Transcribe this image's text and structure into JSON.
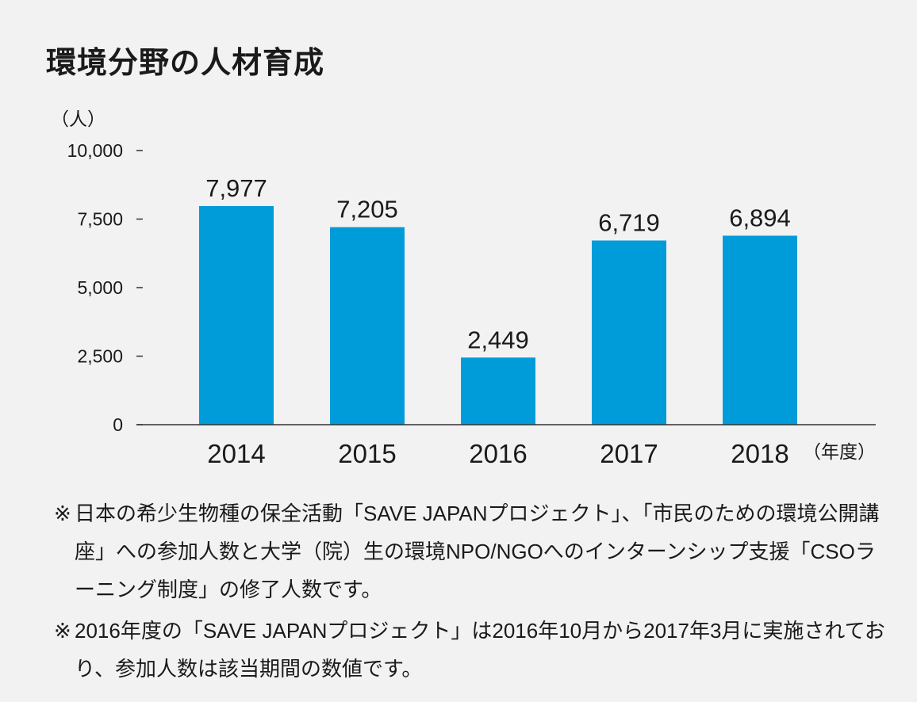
{
  "title": "環境分野の人材育成",
  "chart_data": {
    "type": "bar",
    "title": "",
    "ylabel": "（人）",
    "xlabel": "（年度）",
    "categories": [
      "2014",
      "2015",
      "2016",
      "2017",
      "2018"
    ],
    "values": [
      7977,
      7205,
      2449,
      6719,
      6894
    ],
    "value_labels": [
      "7,977",
      "7,205",
      "2,449",
      "6,719",
      "6,894"
    ],
    "ylim": [
      0,
      10000
    ],
    "yticks": [
      0,
      2500,
      5000,
      7500,
      10000
    ],
    "ytick_labels": [
      "0",
      "2,500",
      "5,000",
      "7,500",
      "10,000"
    ],
    "bar_color": "#009cd9",
    "grid": false
  },
  "notes": [
    {
      "mark": "※",
      "text": "日本の希少生物種の保全活動「SAVE JAPANプロジェクト」、「市民のための環境公開講座」への参加人数と大学（院）生の環境NPO/NGOへのインターンシップ支援「CSOラーニング制度」の修了人数です。"
    },
    {
      "mark": "※",
      "text": "2016年度の「SAVE JAPANプロジェクト」は2016年10月から2017年3月に実施されており、参加人数は該当期間の数値です。"
    }
  ]
}
